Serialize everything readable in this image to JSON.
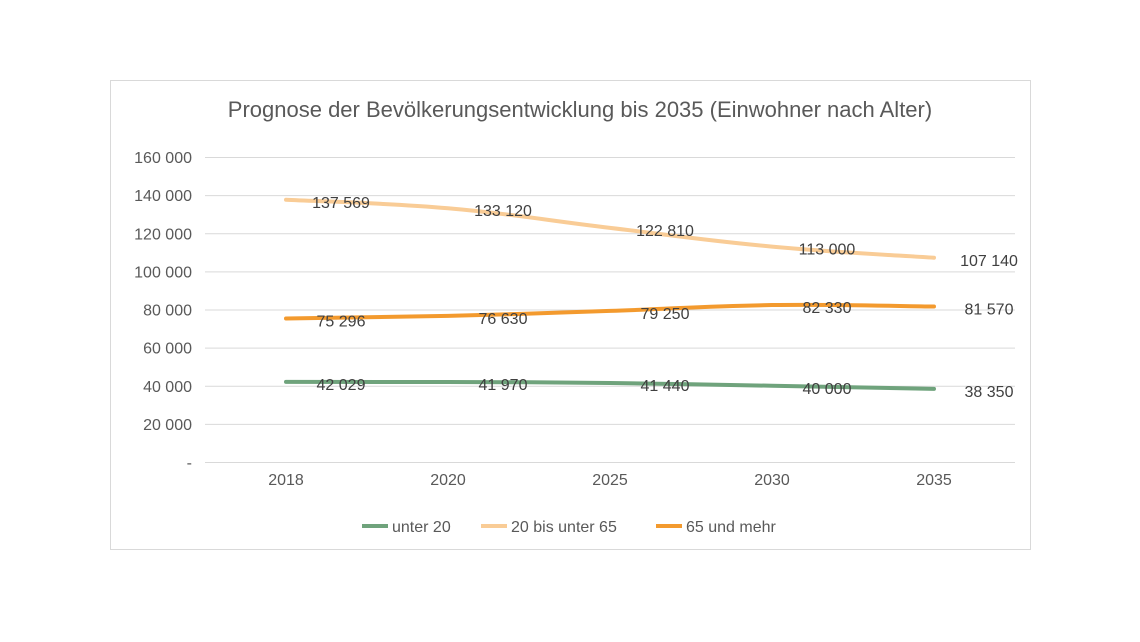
{
  "chart_data": {
    "type": "line",
    "title": "Prognose der Bevölkerungsentwicklung bis 2035 (Einwohner nach Alter)",
    "categories": [
      "2018",
      "2020",
      "2025",
      "2030",
      "2035"
    ],
    "ylim": [
      0,
      160000
    ],
    "yticks": [
      0,
      20000,
      40000,
      60000,
      80000,
      100000,
      120000,
      140000,
      160000
    ],
    "ytick_labels": [
      "-",
      "20 000",
      "40 000",
      "60 000",
      "80 000",
      "100 000",
      "120 000",
      "140 000",
      "160 000"
    ],
    "grid": true,
    "legend": "bottom",
    "smooth": true,
    "series": [
      {
        "name": "unter 20",
        "color": "#6fa37c",
        "values": [
          42029,
          41970,
          41440,
          40000,
          38350
        ],
        "labels": [
          "42 029",
          "41 970",
          "41 440",
          "40 000",
          "38 350"
        ]
      },
      {
        "name": "20 bis unter 65",
        "color": "#f9cc96",
        "values": [
          137569,
          133120,
          122810,
          113000,
          107140
        ],
        "labels": [
          "137 569",
          "133 120",
          "122 810",
          "113 000",
          "107 140"
        ]
      },
      {
        "name": "65 und mehr",
        "color": "#f39a2e",
        "values": [
          75296,
          76630,
          79250,
          82330,
          81570
        ],
        "labels": [
          "75 296",
          "76 630",
          "79 250",
          "82 330",
          "81 570"
        ]
      }
    ]
  }
}
